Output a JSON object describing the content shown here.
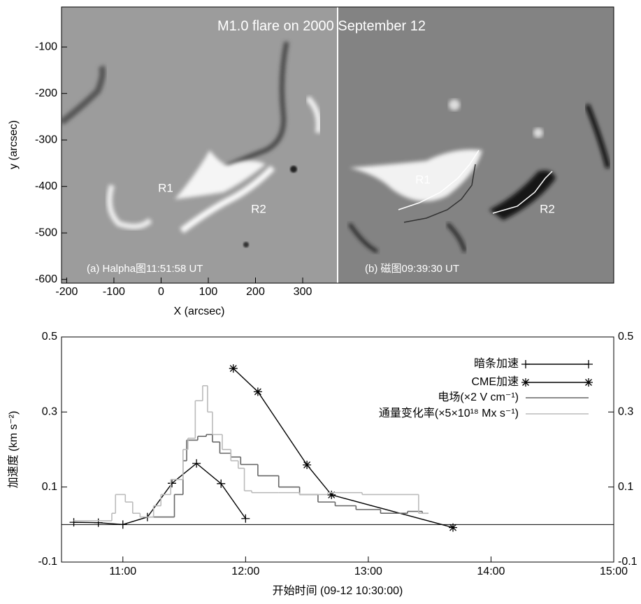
{
  "chart_data": [
    {
      "type": "image",
      "title": "M1.0 flare on 2000 September 12",
      "xlabel": "X (arcsec)",
      "ylabel": "y (arcsec)",
      "xlim": [
        -211,
        374
      ],
      "ylim": [
        -608,
        -14
      ],
      "xticks": [
        -200,
        -100,
        0,
        100,
        200,
        300
      ],
      "yticks": [
        -100,
        -200,
        -300,
        -400,
        -500,
        -600
      ],
      "panels": [
        {
          "caption": "(a) Halpha图11:51:58 UT",
          "regions": [
            "R1",
            "R2"
          ]
        },
        {
          "caption": "(b) 磁图09:39:30 UT",
          "regions": [
            "R1",
            "R2"
          ]
        }
      ]
    },
    {
      "type": "line",
      "xlabel": "开始时间 (09-12 10:30:00)",
      "ylabel": "加速度 (km s⁻²)",
      "xlim": [
        10.5,
        15
      ],
      "ylim": [
        -0.1,
        0.5
      ],
      "y2lim": [
        -0.1,
        0.5
      ],
      "xticks": [
        {
          "value": 11,
          "label": "11:00"
        },
        {
          "value": 12,
          "label": "12:00"
        },
        {
          "value": 13,
          "label": "13:00"
        },
        {
          "value": 14,
          "label": "14:00"
        },
        {
          "value": 15,
          "label": "15:00"
        }
      ],
      "yticks": [
        -0.1,
        0.1,
        0.3,
        0.5
      ],
      "y2ticks": [
        -0.1,
        0.1,
        0.3,
        0.5
      ],
      "legend": "upper right",
      "series": [
        {
          "name": "暗条加速",
          "color": "#000000",
          "marker": "plus",
          "step": false,
          "x": [
            10.6,
            10.8,
            11.0,
            11.2,
            11.4,
            11.6,
            11.8,
            12.0
          ],
          "values": [
            0.006,
            0.005,
            0,
            0.02,
            0.11,
            0.163,
            0.109,
            0.016
          ]
        },
        {
          "name": "CME加速",
          "color": "#000000",
          "marker": "asterisk",
          "step": false,
          "x": [
            11.9,
            12.1,
            12.5,
            12.7,
            13.69
          ],
          "values": [
            0.416,
            0.354,
            0.159,
            0.079,
            -0.008
          ]
        },
        {
          "name": "电场(×2 V cm⁻¹)",
          "color": "#666666",
          "marker": null,
          "step": true,
          "x": [
            11.24,
            11.42,
            11.49,
            11.52,
            11.61,
            11.68,
            11.73,
            11.79,
            11.88,
            11.96,
            12.1,
            12.27,
            12.44,
            12.59,
            12.73,
            12.9,
            13.1,
            13.32,
            13.44,
            13.49
          ],
          "values": [
            0.02,
            0.08,
            0.17,
            0.225,
            0.235,
            0.24,
            0.22,
            0.19,
            0.18,
            0.16,
            0.13,
            0.1,
            0.08,
            0.06,
            0.05,
            0.04,
            0.03,
            0.035,
            0.03,
            0.03
          ]
        },
        {
          "name": "通量变化率(×5×10¹⁸ Mx s⁻¹)",
          "color": "#bbbbbb",
          "marker": null,
          "step": true,
          "x": [
            10.6,
            10.91,
            10.94,
            11.02,
            11.08,
            11.14,
            11.25,
            11.31,
            11.39,
            11.49,
            11.53,
            11.59,
            11.65,
            11.69,
            11.73,
            11.81,
            11.88,
            11.94,
            11.99,
            12.05,
            12.27,
            12.44,
            12.67,
            12.95,
            13.24,
            13.41,
            13.49
          ],
          "values": [
            0.01,
            0.03,
            0.08,
            0.06,
            0.03,
            0.02,
            0.05,
            0.08,
            0.12,
            0.2,
            0.23,
            0.33,
            0.37,
            0.3,
            0.24,
            0.2,
            0.17,
            0.15,
            0.09,
            0.085,
            0.085,
            0.08,
            0.085,
            0.08,
            0.08,
            0.03,
            0.03
          ]
        }
      ]
    }
  ]
}
